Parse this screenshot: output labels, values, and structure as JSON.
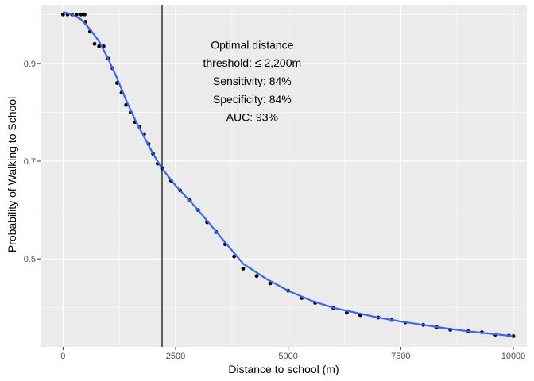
{
  "chart_data": {
    "type": "scatter",
    "xlabel": "Distance to school (m)",
    "ylabel": "Probability of Walking to School",
    "xlim": [
      -500,
      10300
    ],
    "ylim": [
      0.32,
      1.02
    ],
    "x_ticks": [
      0,
      2500,
      5000,
      7500,
      10000
    ],
    "x_tick_labels": [
      "0",
      "2500",
      "5000",
      "7500",
      "10000"
    ],
    "y_ticks": [
      0.5,
      0.7,
      0.9
    ],
    "y_tick_labels": [
      "0.5",
      "0.7",
      "0.9"
    ],
    "grid": true,
    "panel_background": "#ebebeb",
    "grid_color": "#ffffff",
    "point_color": "#000000",
    "smooth_color": "#3366ff",
    "vline_color": "#000000",
    "vline_x": 2200,
    "points": [
      {
        "x": 0,
        "y": 1.0
      },
      {
        "x": 100,
        "y": 1.0
      },
      {
        "x": 200,
        "y": 1.0
      },
      {
        "x": 300,
        "y": 1.0
      },
      {
        "x": 400,
        "y": 1.0
      },
      {
        "x": 480,
        "y": 1.0
      },
      {
        "x": 500,
        "y": 0.985
      },
      {
        "x": 600,
        "y": 0.965
      },
      {
        "x": 700,
        "y": 0.94
      },
      {
        "x": 800,
        "y": 0.935
      },
      {
        "x": 900,
        "y": 0.935
      },
      {
        "x": 1000,
        "y": 0.91
      },
      {
        "x": 1100,
        "y": 0.89
      },
      {
        "x": 1200,
        "y": 0.86
      },
      {
        "x": 1300,
        "y": 0.84
      },
      {
        "x": 1400,
        "y": 0.815
      },
      {
        "x": 1500,
        "y": 0.8
      },
      {
        "x": 1600,
        "y": 0.78
      },
      {
        "x": 1700,
        "y": 0.77
      },
      {
        "x": 1800,
        "y": 0.755
      },
      {
        "x": 1900,
        "y": 0.735
      },
      {
        "x": 2000,
        "y": 0.715
      },
      {
        "x": 2100,
        "y": 0.695
      },
      {
        "x": 2200,
        "y": 0.685
      },
      {
        "x": 2400,
        "y": 0.66
      },
      {
        "x": 2600,
        "y": 0.64
      },
      {
        "x": 2800,
        "y": 0.62
      },
      {
        "x": 3000,
        "y": 0.6
      },
      {
        "x": 3200,
        "y": 0.575
      },
      {
        "x": 3400,
        "y": 0.555
      },
      {
        "x": 3600,
        "y": 0.53
      },
      {
        "x": 3800,
        "y": 0.505
      },
      {
        "x": 4000,
        "y": 0.48
      },
      {
        "x": 4300,
        "y": 0.465
      },
      {
        "x": 4600,
        "y": 0.45
      },
      {
        "x": 5000,
        "y": 0.435
      },
      {
        "x": 5300,
        "y": 0.42
      },
      {
        "x": 5600,
        "y": 0.41
      },
      {
        "x": 6000,
        "y": 0.4
      },
      {
        "x": 6300,
        "y": 0.39
      },
      {
        "x": 6600,
        "y": 0.385
      },
      {
        "x": 7000,
        "y": 0.38
      },
      {
        "x": 7300,
        "y": 0.375
      },
      {
        "x": 7600,
        "y": 0.37
      },
      {
        "x": 8000,
        "y": 0.365
      },
      {
        "x": 8300,
        "y": 0.36
      },
      {
        "x": 8600,
        "y": 0.355
      },
      {
        "x": 9000,
        "y": 0.352
      },
      {
        "x": 9300,
        "y": 0.35
      },
      {
        "x": 9600,
        "y": 0.345
      },
      {
        "x": 9900,
        "y": 0.343
      },
      {
        "x": 10000,
        "y": 0.342
      }
    ],
    "smooth": [
      {
        "x": 0,
        "y": 1.005
      },
      {
        "x": 200,
        "y": 1.0
      },
      {
        "x": 400,
        "y": 0.99
      },
      {
        "x": 600,
        "y": 0.97
      },
      {
        "x": 800,
        "y": 0.945
      },
      {
        "x": 1000,
        "y": 0.91
      },
      {
        "x": 1200,
        "y": 0.87
      },
      {
        "x": 1400,
        "y": 0.825
      },
      {
        "x": 1600,
        "y": 0.785
      },
      {
        "x": 1800,
        "y": 0.75
      },
      {
        "x": 2000,
        "y": 0.715
      },
      {
        "x": 2200,
        "y": 0.685
      },
      {
        "x": 2500,
        "y": 0.65
      },
      {
        "x": 3000,
        "y": 0.6
      },
      {
        "x": 3500,
        "y": 0.545
      },
      {
        "x": 4000,
        "y": 0.49
      },
      {
        "x": 4500,
        "y": 0.46
      },
      {
        "x": 5000,
        "y": 0.435
      },
      {
        "x": 5500,
        "y": 0.415
      },
      {
        "x": 6000,
        "y": 0.4
      },
      {
        "x": 6500,
        "y": 0.39
      },
      {
        "x": 7000,
        "y": 0.38
      },
      {
        "x": 7500,
        "y": 0.372
      },
      {
        "x": 8000,
        "y": 0.365
      },
      {
        "x": 8500,
        "y": 0.358
      },
      {
        "x": 9000,
        "y": 0.352
      },
      {
        "x": 9500,
        "y": 0.347
      },
      {
        "x": 10000,
        "y": 0.342
      }
    ],
    "annotation": {
      "x": 4200,
      "lines": [
        {
          "text": "Optimal distance",
          "y": 0.93
        },
        {
          "text": "threshold: ≤ 2,200m",
          "y": 0.893
        },
        {
          "text": "Sensitivity: 84%",
          "y": 0.856
        },
        {
          "text": "Specificity: 84%",
          "y": 0.819
        },
        {
          "text": "AUC: 93%",
          "y": 0.782
        }
      ]
    }
  }
}
